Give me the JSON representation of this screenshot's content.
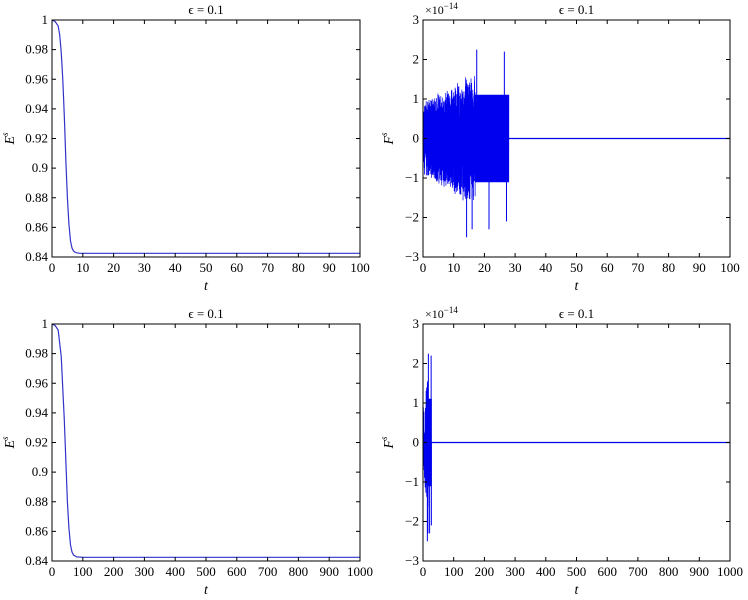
{
  "chart_data": [
    {
      "type": "line",
      "title": "ϵ = 0.1",
      "xlabel": "t",
      "ylabel_base": "E",
      "ylabel_sup": "s",
      "xlim": [
        0,
        100
      ],
      "ylim": [
        0.84,
        1.0
      ],
      "xticks": [
        "0",
        "10",
        "20",
        "30",
        "40",
        "50",
        "60",
        "70",
        "80",
        "90",
        "100"
      ],
      "yticks": [
        "0.84",
        "0.86",
        "0.88",
        "0.9",
        "0.92",
        "0.94",
        "0.96",
        "0.98",
        "1"
      ],
      "color": "#3333cc",
      "series": [
        {
          "x": [
            0,
            1,
            2,
            2.5,
            3,
            3.5,
            4,
            4.5,
            5,
            5.5,
            6,
            6.5,
            7,
            7.5,
            8,
            9,
            10,
            20,
            40,
            60,
            80,
            100
          ],
          "y": [
            1.0,
            0.999,
            0.996,
            0.99,
            0.978,
            0.96,
            0.935,
            0.905,
            0.88,
            0.862,
            0.851,
            0.846,
            0.844,
            0.8432,
            0.8428,
            0.8425,
            0.8425,
            0.8425,
            0.8425,
            0.8425,
            0.8425,
            0.8425
          ]
        }
      ]
    },
    {
      "type": "line",
      "title": "ϵ = 0.1",
      "xlabel": "t",
      "ylabel_base": "F",
      "ylabel_sup": "s",
      "multiplier_base": "×10",
      "multiplier_exp": "−14",
      "xlim": [
        0,
        100
      ],
      "ylim": [
        -3,
        3
      ],
      "xticks": [
        "0",
        "10",
        "20",
        "30",
        "40",
        "50",
        "60",
        "70",
        "80",
        "90",
        "100"
      ],
      "yticks": [
        "−3",
        "−2",
        "−1",
        "0",
        "1",
        "2",
        "3"
      ],
      "color": "#0000ee",
      "noise": {
        "dense_until": 28,
        "band_start": 17,
        "band_amp": 1.1,
        "max_amp": 2.5,
        "spikes": [
          [
            17.5,
            2.25
          ],
          [
            26.5,
            2.2
          ],
          [
            21.5,
            -2.3
          ],
          [
            14.2,
            -2.5
          ],
          [
            16,
            -2.3
          ],
          [
            27.2,
            -2.1
          ]
        ]
      },
      "series": [
        {
          "x": [
            28,
            100
          ],
          "y": [
            0,
            0
          ]
        }
      ]
    },
    {
      "type": "line",
      "title": "ϵ = 0.1",
      "xlabel": "t",
      "ylabel_base": "E",
      "ylabel_sup": "s",
      "xlim": [
        0,
        1000
      ],
      "ylim": [
        0.84,
        1.0
      ],
      "xticks": [
        "0",
        "100",
        "200",
        "300",
        "400",
        "500",
        "600",
        "700",
        "800",
        "900",
        "1000"
      ],
      "yticks": [
        "0.84",
        "0.86",
        "0.88",
        "0.9",
        "0.92",
        "0.94",
        "0.96",
        "0.98",
        "1"
      ],
      "color": "#3333cc",
      "series": [
        {
          "x": [
            0,
            10,
            20,
            30,
            40,
            50,
            55,
            60,
            65,
            70,
            80,
            100,
            1000
          ],
          "y": [
            1.0,
            0.999,
            0.996,
            0.978,
            0.935,
            0.88,
            0.862,
            0.851,
            0.846,
            0.844,
            0.8428,
            0.8425,
            0.8425
          ]
        }
      ]
    },
    {
      "type": "line",
      "title": "ϵ = 0.1",
      "xlabel": "t",
      "ylabel_base": "F",
      "ylabel_sup": "s",
      "multiplier_base": "×10",
      "multiplier_exp": "−14",
      "xlim": [
        0,
        1000
      ],
      "ylim": [
        -3,
        3
      ],
      "xticks": [
        "0",
        "100",
        "200",
        "300",
        "400",
        "500",
        "600",
        "700",
        "800",
        "900",
        "1000"
      ],
      "yticks": [
        "−3",
        "−2",
        "−1",
        "0",
        "1",
        "2",
        "3"
      ],
      "color": "#0000ee",
      "noise": {
        "dense_until": 28,
        "band_start": 17,
        "band_amp": 1.1,
        "max_amp": 2.5,
        "spikes": [
          [
            17.5,
            2.25
          ],
          [
            26.5,
            2.2
          ],
          [
            21.5,
            -2.3
          ],
          [
            14.2,
            -2.5
          ],
          [
            16,
            -2.3
          ],
          [
            27.2,
            -2.1
          ]
        ]
      },
      "series": [
        {
          "x": [
            28,
            1000
          ],
          "y": [
            0,
            0
          ]
        }
      ]
    }
  ]
}
